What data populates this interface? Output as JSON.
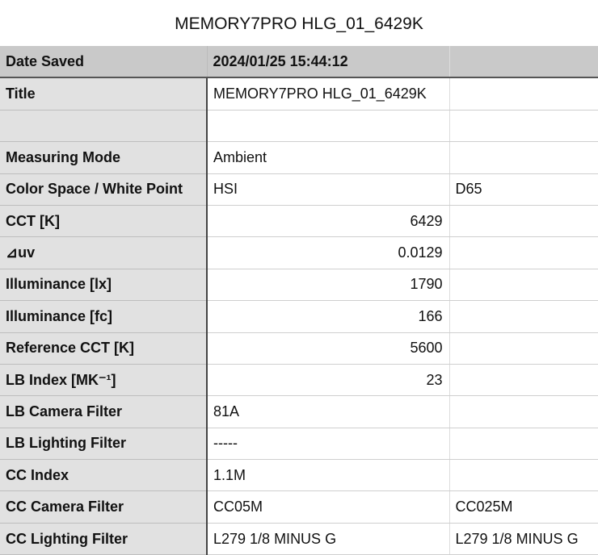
{
  "document_title": "MEMORY7PRO HLG_01_6429K",
  "header": {
    "label": "Date Saved",
    "value": "2024/01/25 15:44:12",
    "extra": ""
  },
  "rows": [
    {
      "label": "Title",
      "value": "MEMORY7PRO HLG_01_6429K",
      "extra": "",
      "numeric": false
    },
    {
      "label": "",
      "value": "",
      "extra": "",
      "numeric": false
    },
    {
      "label": "Measuring Mode",
      "value": "Ambient",
      "extra": "",
      "numeric": false
    },
    {
      "label": "Color Space / White Point",
      "value": "HSI",
      "extra": "D65",
      "numeric": false
    },
    {
      "label": "CCT [K]",
      "value": "6429",
      "extra": "",
      "numeric": true
    },
    {
      "label": "⊿uv",
      "value": "0.0129",
      "extra": "",
      "numeric": true
    },
    {
      "label": "Illuminance [lx]",
      "value": "1790",
      "extra": "",
      "numeric": true
    },
    {
      "label": "Illuminance [fc]",
      "value": "166",
      "extra": "",
      "numeric": true
    },
    {
      "label": "Reference CCT [K]",
      "value": "5600",
      "extra": "",
      "numeric": true
    },
    {
      "label": "LB Index [MK⁻¹]",
      "value": "23",
      "extra": "",
      "numeric": true
    },
    {
      "label": "LB Camera Filter",
      "value": "81A",
      "extra": "",
      "numeric": false
    },
    {
      "label": "LB Lighting Filter",
      "value": "-----",
      "extra": "",
      "numeric": false
    },
    {
      "label": "CC Index",
      "value": "1.1M",
      "extra": "",
      "numeric": false
    },
    {
      "label": "CC Camera Filter",
      "value": "CC05M",
      "extra": "CC025M",
      "numeric": false
    },
    {
      "label": "CC Lighting Filter",
      "value": "L279 1/8 MINUS G",
      "extra": "L279 1/8 MINUS G",
      "numeric": false
    }
  ]
}
